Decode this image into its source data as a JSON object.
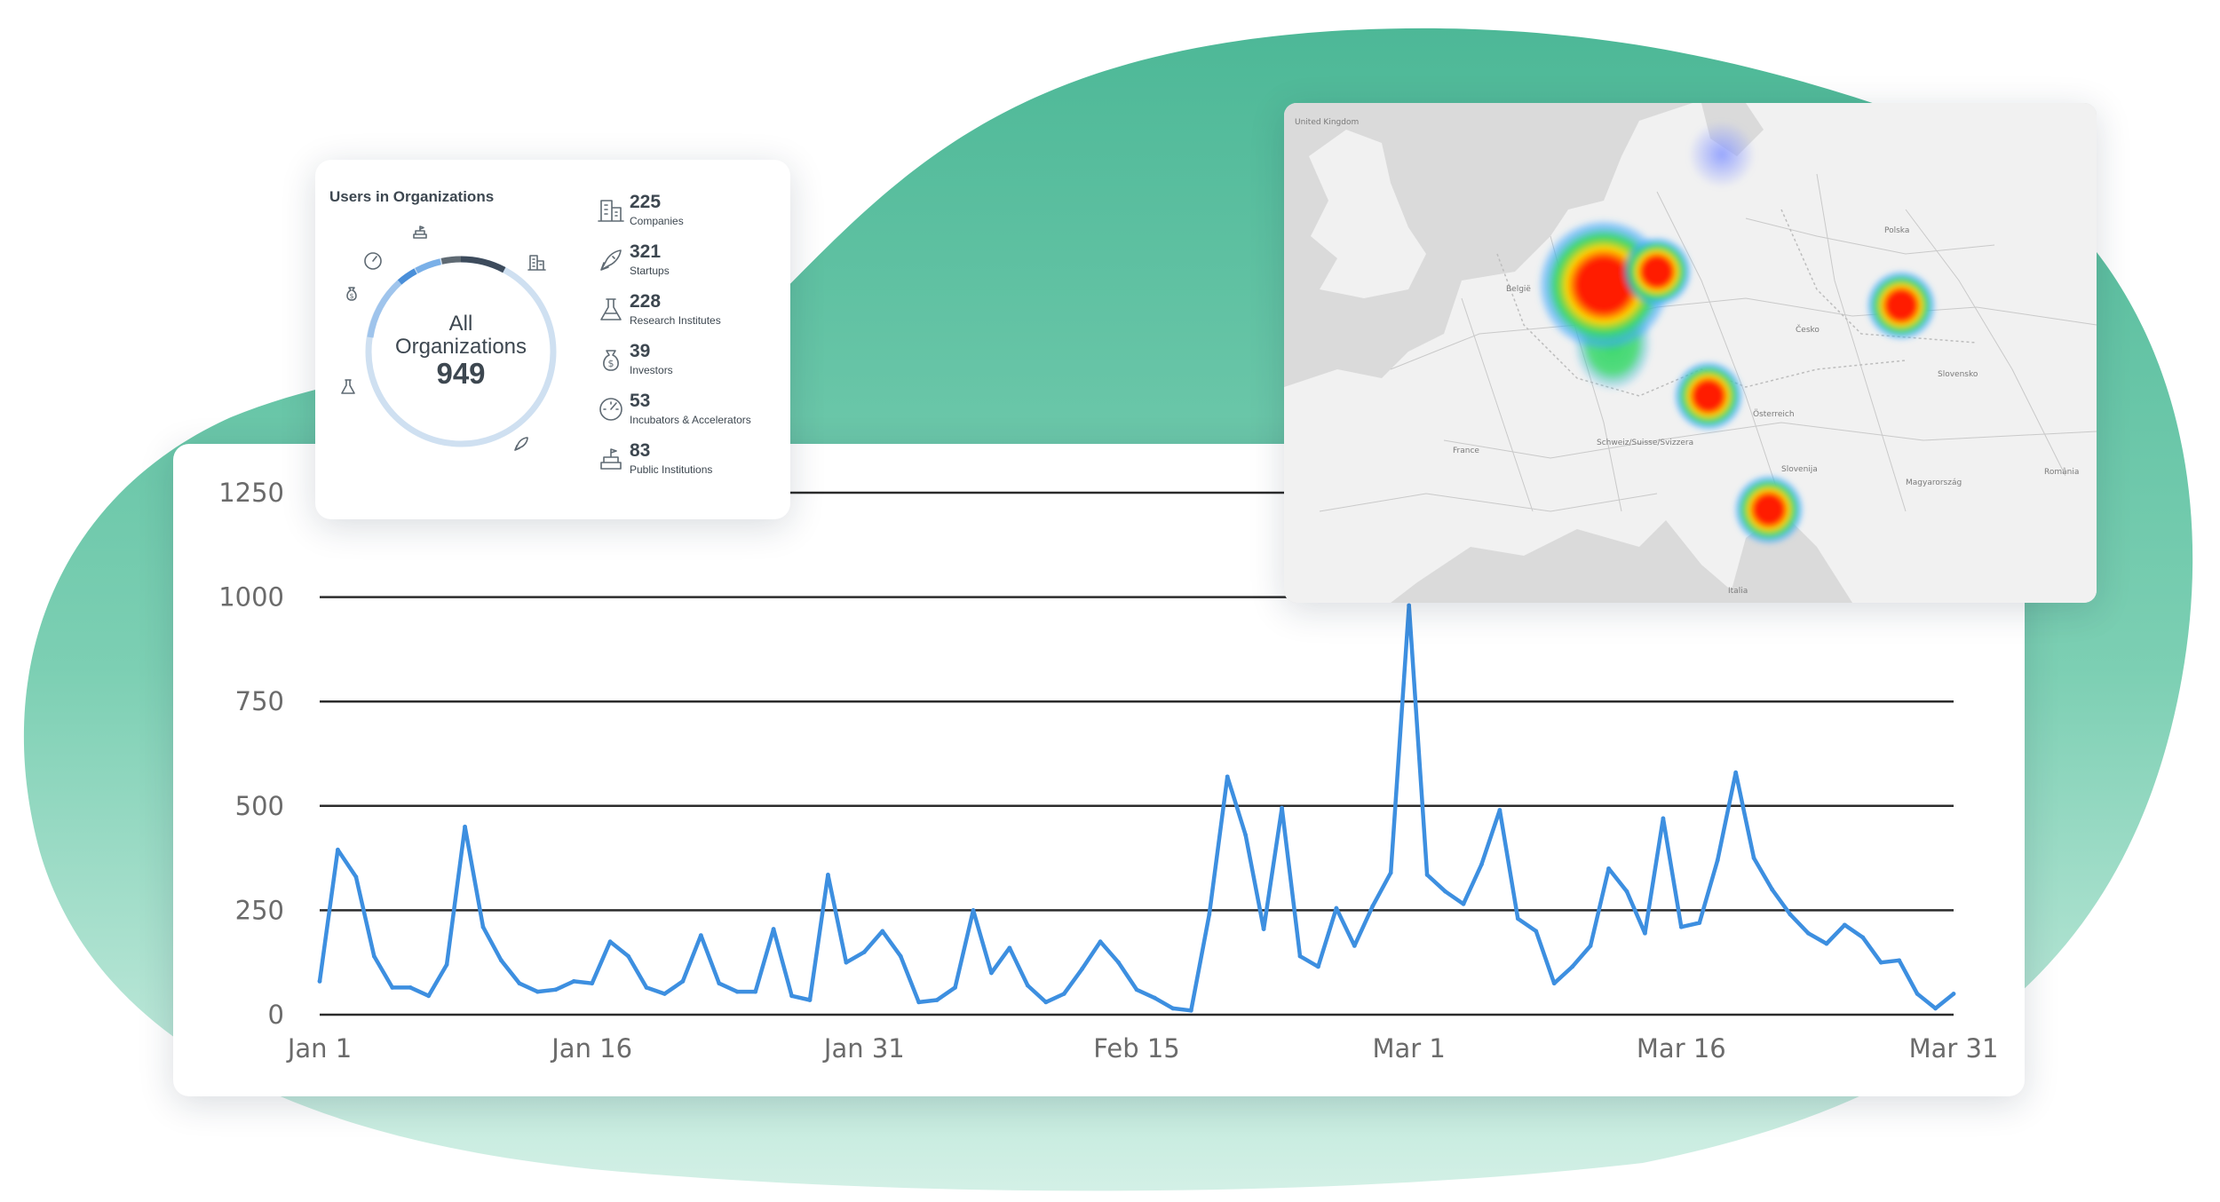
{
  "brand": {
    "accent": "#4db897",
    "line_color": "#3d8fe0"
  },
  "chart_data": {
    "type": "line",
    "title": "",
    "xlabel": "",
    "ylabel": "",
    "ylim": [
      0,
      1250
    ],
    "yticks": [
      0,
      250,
      500,
      750,
      1000,
      1250
    ],
    "ytick_labels": [
      "0",
      "250",
      "500",
      "750",
      "1000",
      "1250"
    ],
    "x_start": "Jan 1",
    "x_end": "Mar 31",
    "xtick_labels": [
      "Jan 1",
      "Jan 16",
      "Jan 31",
      "Feb 15",
      "Mar 1",
      "Mar 16",
      "Mar 31"
    ],
    "grid": true,
    "series": [
      {
        "values": [
          80,
          395,
          330,
          140,
          65,
          65,
          45,
          120,
          450,
          210,
          130,
          75,
          55,
          60,
          80,
          75,
          175,
          140,
          65,
          50,
          80,
          190,
          75,
          55,
          55,
          205,
          45,
          35,
          335,
          125,
          150,
          200,
          140,
          30,
          35,
          65,
          250,
          100,
          160,
          70,
          30,
          50,
          110,
          175,
          125,
          60,
          40,
          15,
          10,
          240,
          570,
          430,
          205,
          495,
          140,
          115,
          255,
          165,
          260,
          340,
          980,
          335,
          295,
          265,
          360,
          490,
          230,
          200,
          75,
          115,
          165,
          350,
          295,
          195,
          470,
          210,
          220,
          370,
          580,
          375,
          300,
          240,
          195,
          170,
          215,
          185,
          125,
          130,
          50,
          15,
          50
        ]
      }
    ]
  },
  "org_card": {
    "title": "Users in Organizations",
    "center_top": "All",
    "center_mid": "Organizations",
    "center_total": "949",
    "items": [
      {
        "icon": "building-icon",
        "count": "225",
        "label": "Companies"
      },
      {
        "icon": "rocket-icon",
        "count": "321",
        "label": "Startups"
      },
      {
        "icon": "flask-icon",
        "count": "228",
        "label": "Research Institutes"
      },
      {
        "icon": "money-bag-icon",
        "count": "39",
        "label": "Investors"
      },
      {
        "icon": "speedometer-icon",
        "count": "53",
        "label": "Incubators & Accelerators"
      },
      {
        "icon": "public-institution-icon",
        "count": "83",
        "label": "Public Institutions"
      }
    ]
  },
  "map_card": {
    "labels": [
      "United Kingdom",
      "België",
      "France",
      "Schweiz/Suisse/Svizzera",
      "Polska",
      "Česko",
      "Slovensko",
      "Österreich",
      "România",
      "Slovenija",
      "Italia",
      "Magyarország"
    ],
    "hotspot_colors": {
      "hot": "#ff1e00",
      "warm": "#ffd400",
      "mid": "#39d86b",
      "cool": "#3fa8ff",
      "faint": "#8c9cff"
    }
  }
}
